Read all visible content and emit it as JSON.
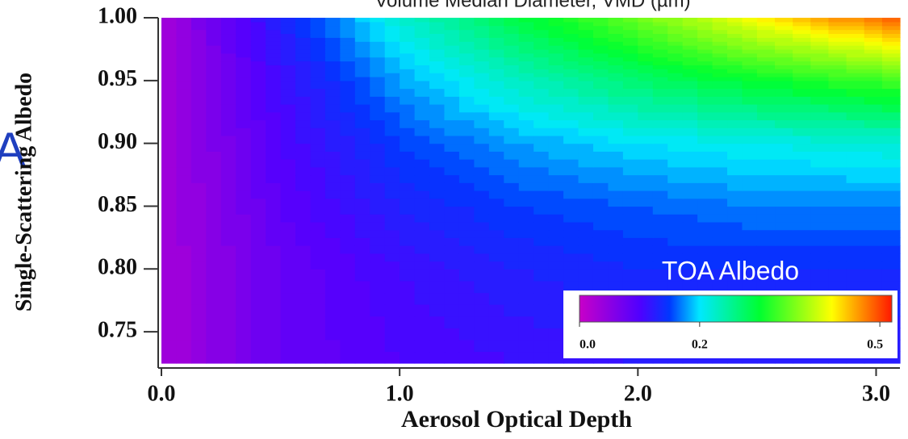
{
  "chart_data": {
    "type": "contour",
    "title": "Volume Median Diameter, VMD (µm)",
    "side_text": "A",
    "x_label": "Aerosol Optical Depth",
    "y_label": "Single-Scattering Albedo",
    "x": [
      0,
      0.5,
      1,
      1.5,
      2,
      2.5,
      3.1
    ],
    "y": [
      0.725,
      0.8,
      0.85,
      0.9,
      0.95,
      0.975,
      1.0
    ],
    "z": [
      [
        0.03,
        0.08,
        0.1,
        0.11,
        0.12,
        0.12,
        0.12
      ],
      [
        0.03,
        0.08,
        0.11,
        0.13,
        0.14,
        0.14,
        0.14
      ],
      [
        0.03,
        0.09,
        0.13,
        0.15,
        0.16,
        0.17,
        0.17
      ],
      [
        0.03,
        0.1,
        0.15,
        0.18,
        0.2,
        0.21,
        0.22
      ],
      [
        0.03,
        0.11,
        0.18,
        0.23,
        0.27,
        0.3,
        0.33
      ],
      [
        0.03,
        0.12,
        0.2,
        0.26,
        0.31,
        0.36,
        0.41
      ],
      [
        0.03,
        0.13,
        0.22,
        0.29,
        0.35,
        0.42,
        0.5
      ]
    ],
    "xlim": [
      0,
      3.1
    ],
    "ylim": [
      0.725,
      1.0
    ],
    "xticks": [
      {
        "value": 0,
        "label": "0.0"
      },
      {
        "value": 1,
        "label": "1.0"
      },
      {
        "value": 2,
        "label": "2.0"
      },
      {
        "value": 3,
        "label": "3.0"
      }
    ],
    "yticks": [
      0.75,
      {
        "value": 0.8,
        "label": "0.80"
      },
      0.85,
      {
        "value": 0.9,
        "label": "0.90"
      },
      0.95,
      {
        "value": 1.0,
        "label": "1.00"
      }
    ],
    "contour_interval": 0.01,
    "colorbar": {
      "title": "TOA Albedo",
      "lim": [
        0,
        0.52
      ],
      "ticks": [
        {
          "value": 0,
          "label": "0.0"
        },
        0.2,
        0.5
      ]
    },
    "colorscale": [
      [
        0,
        "#c800c8"
      ],
      [
        0.1,
        "#5000ff"
      ],
      [
        0.15,
        "#0038ff"
      ],
      [
        0.2,
        "#00e8ff"
      ],
      [
        0.3,
        "#00ff30"
      ],
      [
        0.42,
        "#ffff00"
      ],
      [
        0.52,
        "#ff1800"
      ]
    ]
  }
}
